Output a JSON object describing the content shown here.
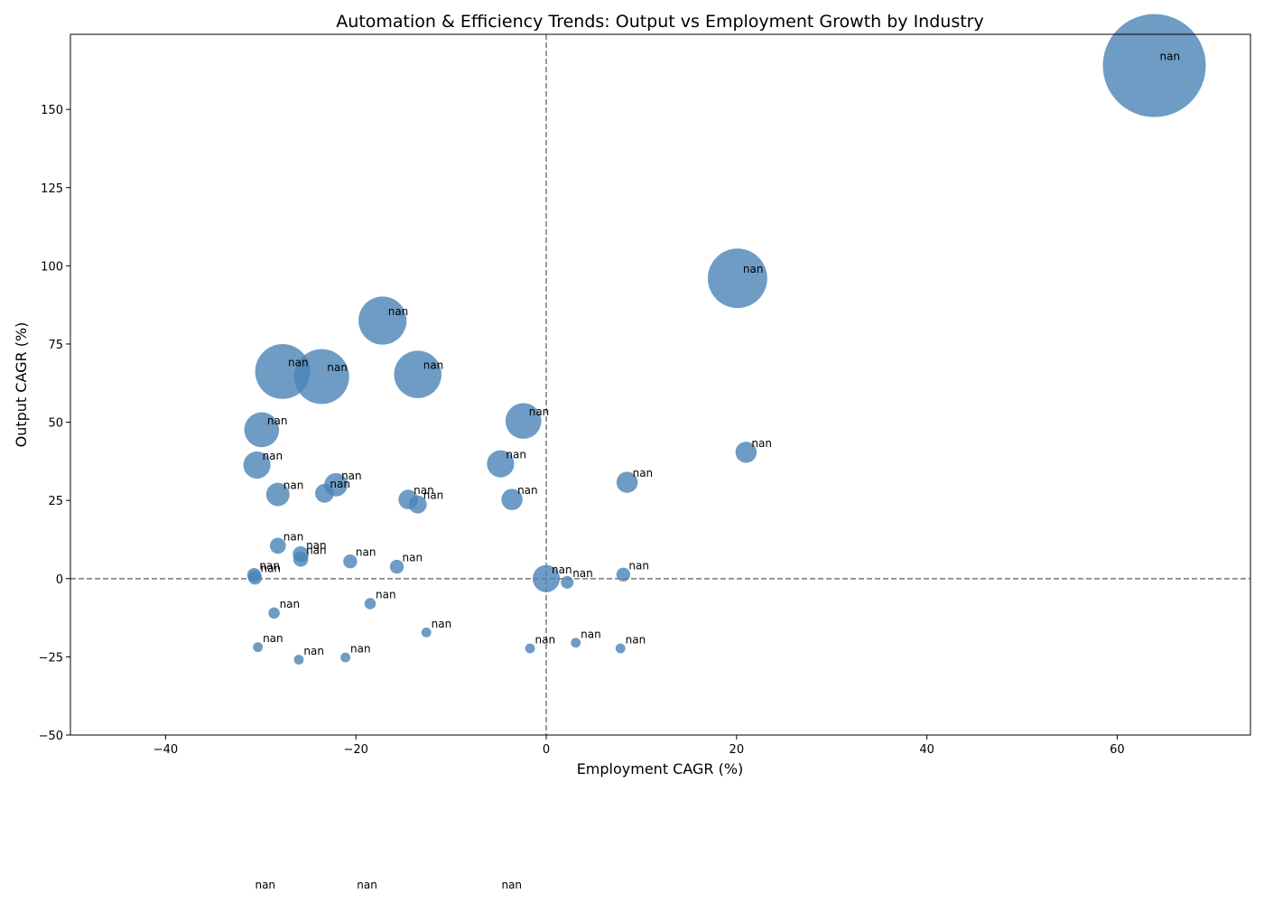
{
  "chart_data": {
    "type": "scatter",
    "title": "Automation & Efficiency Trends: Output vs Employment Growth by Industry",
    "xlabel": "Employment CAGR (%)",
    "ylabel": "Output CAGR (%)",
    "xlim": [
      -50,
      74
    ],
    "ylim": [
      -50,
      174
    ],
    "xticks": [
      -40,
      -20,
      0,
      20,
      40,
      60
    ],
    "yticks": [
      -50,
      -25,
      0,
      25,
      50,
      75,
      100,
      125,
      150
    ],
    "reference_lines": {
      "x": 0,
      "y": 0,
      "style": "dashed",
      "color": "#808080"
    },
    "grid": false,
    "marker_color": "#4a83b6",
    "points": [
      {
        "x": 63.9,
        "y": 164.0,
        "size_value": 165.0,
        "label": "nan"
      },
      {
        "x": 20.1,
        "y": 96.0,
        "size_value": 55.0,
        "label": "nan"
      },
      {
        "x": -17.2,
        "y": 82.5,
        "size_value": 36.0,
        "label": "nan"
      },
      {
        "x": -27.7,
        "y": 66.2,
        "size_value": 47.0,
        "label": "nan"
      },
      {
        "x": -23.6,
        "y": 64.6,
        "size_value": 47.0,
        "label": "nan"
      },
      {
        "x": -13.5,
        "y": 65.3,
        "size_value": 35.0,
        "label": "nan"
      },
      {
        "x": -2.4,
        "y": 50.4,
        "size_value": 20.0,
        "label": "nan"
      },
      {
        "x": -29.9,
        "y": 47.6,
        "size_value": 19.0,
        "label": "nan"
      },
      {
        "x": -4.8,
        "y": 36.7,
        "size_value": 11.5,
        "label": "nan"
      },
      {
        "x": -30.4,
        "y": 36.3,
        "size_value": 11.5,
        "label": "nan"
      },
      {
        "x": 21.0,
        "y": 40.4,
        "size_value": 7.0,
        "label": "nan"
      },
      {
        "x": 8.5,
        "y": 30.8,
        "size_value": 7.0,
        "label": "nan"
      },
      {
        "x": -22.1,
        "y": 30.0,
        "size_value": 8.5,
        "label": "nan"
      },
      {
        "x": -28.2,
        "y": 26.9,
        "size_value": 8.5,
        "label": "nan"
      },
      {
        "x": -23.3,
        "y": 27.3,
        "size_value": 5.5,
        "label": "nan"
      },
      {
        "x": -3.6,
        "y": 25.3,
        "size_value": 7.0,
        "label": "nan"
      },
      {
        "x": -14.5,
        "y": 25.3,
        "size_value": 6.0,
        "label": "nan"
      },
      {
        "x": -13.5,
        "y": 23.7,
        "size_value": 5.0,
        "label": "nan"
      },
      {
        "x": -28.2,
        "y": 10.5,
        "size_value": 4.0,
        "label": "nan"
      },
      {
        "x": -25.8,
        "y": 7.8,
        "size_value": 4.0,
        "label": "nan"
      },
      {
        "x": -25.8,
        "y": 6.2,
        "size_value": 3.5,
        "label": "nan"
      },
      {
        "x": -20.6,
        "y": 5.5,
        "size_value": 3.0,
        "label": "nan"
      },
      {
        "x": -15.7,
        "y": 3.8,
        "size_value": 3.0,
        "label": "nan"
      },
      {
        "x": -30.7,
        "y": 1.2,
        "size_value": 3.0,
        "label": "nan"
      },
      {
        "x": -30.6,
        "y": 0.3,
        "size_value": 3.0,
        "label": "nan"
      },
      {
        "x": 0.0,
        "y": 0.0,
        "size_value": 11.5,
        "label": "nan"
      },
      {
        "x": 8.1,
        "y": 1.3,
        "size_value": 3.0,
        "label": "nan"
      },
      {
        "x": 2.2,
        "y": -1.2,
        "size_value": 2.5,
        "label": "nan"
      },
      {
        "x": -18.5,
        "y": -8.0,
        "size_value": 2.0,
        "label": "nan"
      },
      {
        "x": -28.6,
        "y": -11.0,
        "size_value": 2.0,
        "label": "nan"
      },
      {
        "x": -12.6,
        "y": -17.2,
        "size_value": 1.5,
        "label": "nan"
      },
      {
        "x": 3.1,
        "y": -20.5,
        "size_value": 1.5,
        "label": "nan"
      },
      {
        "x": -30.3,
        "y": -21.9,
        "size_value": 1.5,
        "label": "nan"
      },
      {
        "x": -1.7,
        "y": -22.3,
        "size_value": 1.5,
        "label": "nan"
      },
      {
        "x": 7.8,
        "y": -22.3,
        "size_value": 1.5,
        "label": "nan"
      },
      {
        "x": -26.0,
        "y": -25.9,
        "size_value": 1.5,
        "label": "nan"
      },
      {
        "x": -21.1,
        "y": -25.2,
        "size_value": 1.5,
        "label": "nan"
      }
    ],
    "outside_labels": [
      {
        "x": -30.6,
        "label": "nan"
      },
      {
        "x": -19.9,
        "label": "nan"
      },
      {
        "x": -4.7,
        "label": "nan"
      }
    ]
  }
}
